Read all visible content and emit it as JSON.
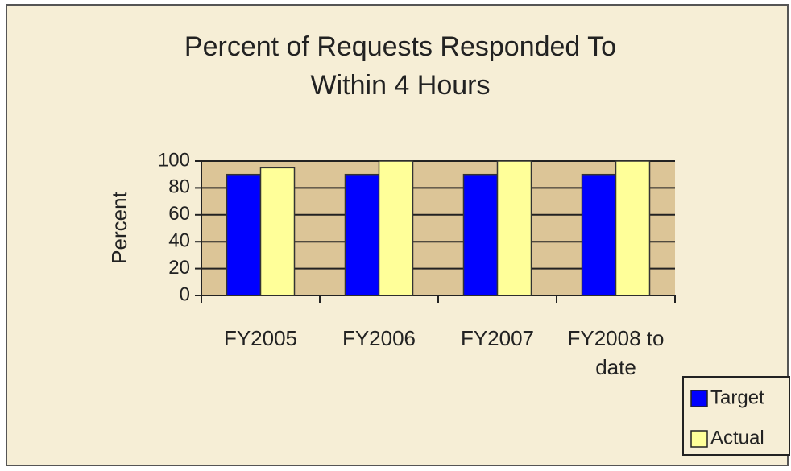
{
  "chart_data": {
    "type": "bar",
    "title": "Percent of Requests Responded To Within 4 Hours",
    "y_label": "Percent",
    "categories": [
      "FY2005",
      "FY2006",
      "FY2007",
      "FY2008 to date"
    ],
    "series": [
      {
        "name": "Target",
        "color": "#0000ff",
        "values": [
          90,
          90,
          90,
          90
        ]
      },
      {
        "name": "Actual",
        "color": "#ffff99",
        "values": [
          95,
          100,
          100,
          100
        ]
      }
    ],
    "ylim": [
      0,
      100
    ],
    "yticks": [
      0,
      20,
      40,
      60,
      80,
      100
    ],
    "grid": true,
    "legend": "bottom-right"
  }
}
